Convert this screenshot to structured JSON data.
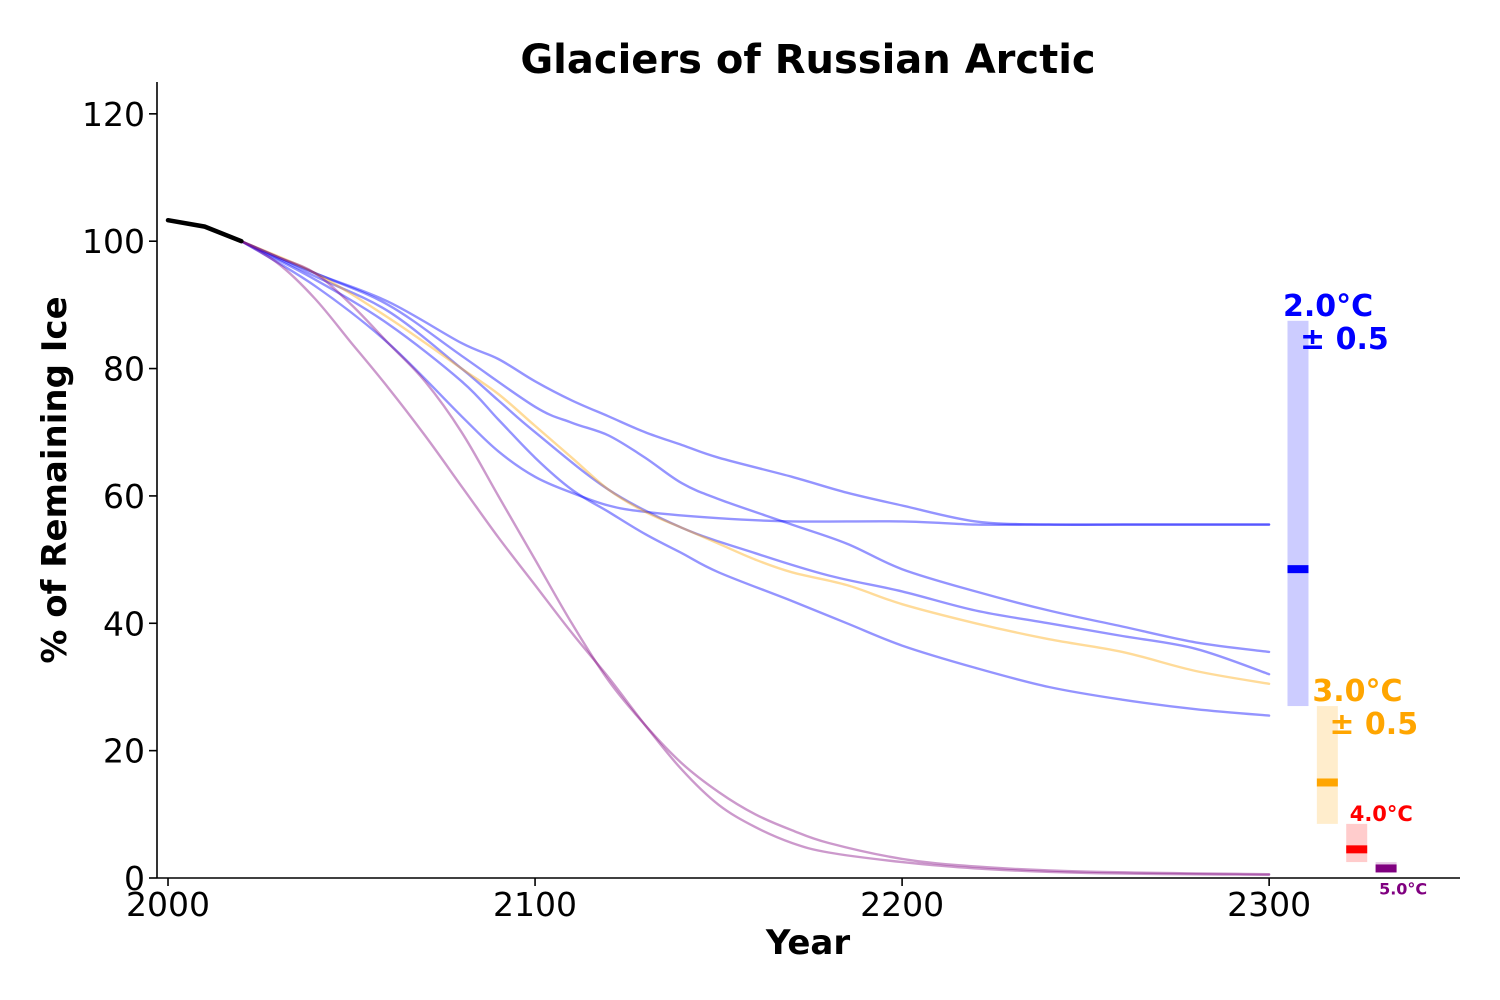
{
  "chart_data": {
    "type": "line",
    "title": "Glaciers of Russian Arctic",
    "xlabel": "Year",
    "ylabel": "% of Remaining Ice",
    "xlim": [
      1997,
      2352
    ],
    "ylim": [
      0,
      125
    ],
    "xticks": [
      2000,
      2100,
      2200,
      2300
    ],
    "yticks": [
      0,
      20,
      40,
      60,
      80,
      100,
      120
    ],
    "grid": false,
    "historical": {
      "name": "",
      "color": "#000000",
      "points": [
        [
          2000,
          103.3
        ],
        [
          2010,
          102.3
        ],
        [
          2020,
          100
        ]
      ]
    },
    "series": [
      {
        "name": "",
        "scenario": "2.0°C",
        "color": "#0000ff",
        "opacity": 0.42,
        "points": [
          [
            2020,
            100
          ],
          [
            2040,
            95
          ],
          [
            2060,
            90.5
          ],
          [
            2080,
            84
          ],
          [
            2090,
            81.5
          ],
          [
            2100,
            78
          ],
          [
            2110,
            75
          ],
          [
            2120,
            72.5
          ],
          [
            2130,
            70
          ],
          [
            2140,
            68
          ],
          [
            2150,
            66
          ],
          [
            2170,
            63
          ],
          [
            2185,
            60.5
          ],
          [
            2200,
            58.5
          ],
          [
            2220,
            56
          ],
          [
            2240,
            55.5
          ],
          [
            2260,
            55.5
          ],
          [
            2280,
            55.5
          ],
          [
            2300,
            55.5
          ]
        ]
      },
      {
        "name": "",
        "scenario": "2.0°C",
        "color": "#0000ff",
        "opacity": 0.42,
        "points": [
          [
            2020,
            100
          ],
          [
            2040,
            95
          ],
          [
            2060,
            90
          ],
          [
            2080,
            82
          ],
          [
            2100,
            74
          ],
          [
            2110,
            71.5
          ],
          [
            2120,
            69.5
          ],
          [
            2130,
            66
          ],
          [
            2140,
            62
          ],
          [
            2150,
            59.5
          ],
          [
            2170,
            55.5
          ],
          [
            2185,
            52.5
          ],
          [
            2200,
            48.5
          ],
          [
            2220,
            45
          ],
          [
            2240,
            42
          ],
          [
            2260,
            39.5
          ],
          [
            2280,
            37
          ],
          [
            2300,
            35.5
          ]
        ]
      },
      {
        "name": "",
        "scenario": "2.0°C",
        "color": "#0000ff",
        "opacity": 0.42,
        "points": [
          [
            2020,
            100
          ],
          [
            2040,
            94
          ],
          [
            2060,
            87
          ],
          [
            2080,
            78
          ],
          [
            2090,
            72
          ],
          [
            2100,
            66
          ],
          [
            2110,
            61
          ],
          [
            2120,
            57.5
          ],
          [
            2130,
            54
          ],
          [
            2140,
            51
          ],
          [
            2150,
            48
          ],
          [
            2170,
            43.5
          ],
          [
            2185,
            40
          ],
          [
            2200,
            36.5
          ],
          [
            2220,
            33
          ],
          [
            2240,
            30
          ],
          [
            2260,
            28
          ],
          [
            2280,
            26.5
          ],
          [
            2300,
            25.5
          ]
        ]
      },
      {
        "name": "",
        "scenario": "2.0°C",
        "color": "#0000ff",
        "opacity": 0.42,
        "points": [
          [
            2020,
            100
          ],
          [
            2040,
            93
          ],
          [
            2060,
            84
          ],
          [
            2080,
            72.5
          ],
          [
            2090,
            67
          ],
          [
            2100,
            63
          ],
          [
            2110,
            60.5
          ],
          [
            2120,
            58.5
          ],
          [
            2130,
            57.5
          ],
          [
            2150,
            56.5
          ],
          [
            2170,
            56
          ],
          [
            2200,
            56
          ],
          [
            2220,
            55.5
          ],
          [
            2240,
            55.5
          ],
          [
            2260,
            55.5
          ],
          [
            2280,
            55.5
          ],
          [
            2300,
            55.5
          ]
        ]
      },
      {
        "name": "",
        "scenario": "2.0°C",
        "color": "#0000ff",
        "opacity": 0.42,
        "points": [
          [
            2020,
            100
          ],
          [
            2040,
            94.5
          ],
          [
            2060,
            89
          ],
          [
            2080,
            80
          ],
          [
            2090,
            75
          ],
          [
            2100,
            70
          ],
          [
            2120,
            61
          ],
          [
            2140,
            55
          ],
          [
            2160,
            51
          ],
          [
            2180,
            47.5
          ],
          [
            2200,
            45
          ],
          [
            2220,
            42
          ],
          [
            2240,
            40
          ],
          [
            2260,
            38
          ],
          [
            2280,
            36
          ],
          [
            2300,
            32
          ]
        ]
      },
      {
        "name": "",
        "scenario": "3.0°C",
        "color": "#ffa500",
        "opacity": 0.4,
        "points": [
          [
            2020,
            100
          ],
          [
            2040,
            95
          ],
          [
            2060,
            88
          ],
          [
            2080,
            80
          ],
          [
            2090,
            76
          ],
          [
            2100,
            71
          ],
          [
            2110,
            66
          ],
          [
            2120,
            61
          ],
          [
            2130,
            57.5
          ],
          [
            2140,
            55
          ],
          [
            2150,
            52.5
          ],
          [
            2160,
            50
          ],
          [
            2170,
            48
          ],
          [
            2185,
            46
          ],
          [
            2200,
            43
          ],
          [
            2220,
            40
          ],
          [
            2240,
            37.5
          ],
          [
            2260,
            35.5
          ],
          [
            2280,
            32.5
          ],
          [
            2300,
            30.5
          ]
        ]
      },
      {
        "name": "",
        "scenario": "4.0°C",
        "color": "#800080",
        "opacity": 0.4,
        "points": [
          [
            2020,
            100
          ],
          [
            2030,
            97.5
          ],
          [
            2040,
            95
          ],
          [
            2050,
            90
          ],
          [
            2060,
            84
          ],
          [
            2070,
            78
          ],
          [
            2080,
            70
          ],
          [
            2090,
            60
          ],
          [
            2100,
            50
          ],
          [
            2110,
            40
          ],
          [
            2120,
            31
          ],
          [
            2130,
            24
          ],
          [
            2140,
            18
          ],
          [
            2150,
            13.5
          ],
          [
            2160,
            10
          ],
          [
            2170,
            7.5
          ],
          [
            2180,
            5.5
          ],
          [
            2200,
            3
          ],
          [
            2220,
            1.8
          ],
          [
            2250,
            1
          ],
          [
            2300,
            0.6
          ]
        ]
      },
      {
        "name": "",
        "scenario": "5.0°C",
        "color": "#800080",
        "opacity": 0.4,
        "points": [
          [
            2020,
            100
          ],
          [
            2030,
            96.5
          ],
          [
            2040,
            91
          ],
          [
            2050,
            84
          ],
          [
            2060,
            77
          ],
          [
            2070,
            69.5
          ],
          [
            2080,
            61.5
          ],
          [
            2090,
            53.5
          ],
          [
            2100,
            46
          ],
          [
            2110,
            38.5
          ],
          [
            2120,
            31.5
          ],
          [
            2130,
            24
          ],
          [
            2140,
            17
          ],
          [
            2150,
            11.5
          ],
          [
            2160,
            8
          ],
          [
            2170,
            5.5
          ],
          [
            2180,
            4
          ],
          [
            2200,
            2.5
          ],
          [
            2220,
            1.5
          ],
          [
            2250,
            0.8
          ],
          [
            2300,
            0.5
          ]
        ]
      }
    ],
    "ranges": [
      {
        "label": "2.0°C",
        "uncertainty": "± 0.5",
        "color": "#0000ff",
        "x": 2305,
        "low": 27,
        "high": 87.5,
        "median": 48.5,
        "label_size": "large"
      },
      {
        "label": "3.0°C",
        "uncertainty": "± 0.5",
        "color": "#ffa500",
        "x": 2313,
        "low": 8.5,
        "high": 27,
        "median": 15,
        "label_size": "large"
      },
      {
        "label": "4.0°C",
        "uncertainty": "",
        "color": "#ff0000",
        "x": 2321,
        "low": 2.5,
        "high": 8.5,
        "median": 4.5,
        "label_size": "medium"
      },
      {
        "label": "5.0°C",
        "uncertainty": "",
        "color": "#800080",
        "x": 2329,
        "low": 1,
        "high": 2.5,
        "median": 1.5,
        "label_size": "small"
      }
    ]
  }
}
